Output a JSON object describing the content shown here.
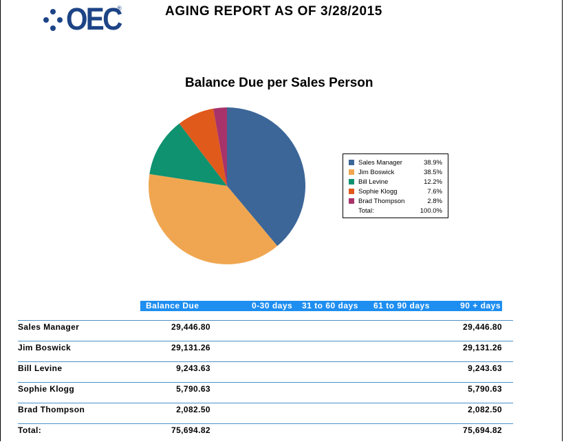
{
  "report": {
    "title": "AGING REPORT AS OF 3/28/2015",
    "logo_text": "OEC",
    "logo_mark": "®"
  },
  "colors": {
    "header_bg": "#1e8ef0",
    "row_line": "#4a90c8",
    "logo": "#1d4486"
  },
  "chart_data": {
    "type": "pie",
    "title": "Balance Due per Sales Person",
    "legend_position": "right",
    "slices": [
      {
        "name": "Sales Manager",
        "value": 38.9,
        "label": "38.9%",
        "color": "#3c6698"
      },
      {
        "name": "Jim Boswick",
        "value": 38.5,
        "label": "38.5%",
        "color": "#f0a650"
      },
      {
        "name": "Bill Levine",
        "value": 12.2,
        "label": "12.2%",
        "color": "#0e9270"
      },
      {
        "name": "Sophie Klogg",
        "value": 7.6,
        "label": "7.6%",
        "color": "#e05a1c"
      },
      {
        "name": "Brad Thompson",
        "value": 2.8,
        "label": "2.8%",
        "color": "#a8336a"
      }
    ],
    "total_label": "Total:",
    "total_value": "100.0%"
  },
  "table": {
    "headers": {
      "balance": "Balance Due",
      "d0_30": "0-30 days",
      "d31_60": "31 to 60 days",
      "d61_90": "61 to 90 days",
      "d90_plus": "90 + days"
    },
    "rows": [
      {
        "name": "Sales Manager",
        "balance": "29,446.80",
        "d90_plus": "29,446.80"
      },
      {
        "name": "Jim Boswick",
        "balance": "29,131.26",
        "d90_plus": "29,131.26"
      },
      {
        "name": "Bill Levine",
        "balance": "9,243.63",
        "d90_plus": "9,243.63"
      },
      {
        "name": "Sophie Klogg",
        "balance": "5,790.63",
        "d90_plus": "5,790.63"
      },
      {
        "name": "Brad Thompson",
        "balance": "2,082.50",
        "d90_plus": "2,082.50"
      }
    ],
    "total": {
      "name": "Total:",
      "balance": "75,694.82",
      "d90_plus": "75,694.82"
    }
  }
}
